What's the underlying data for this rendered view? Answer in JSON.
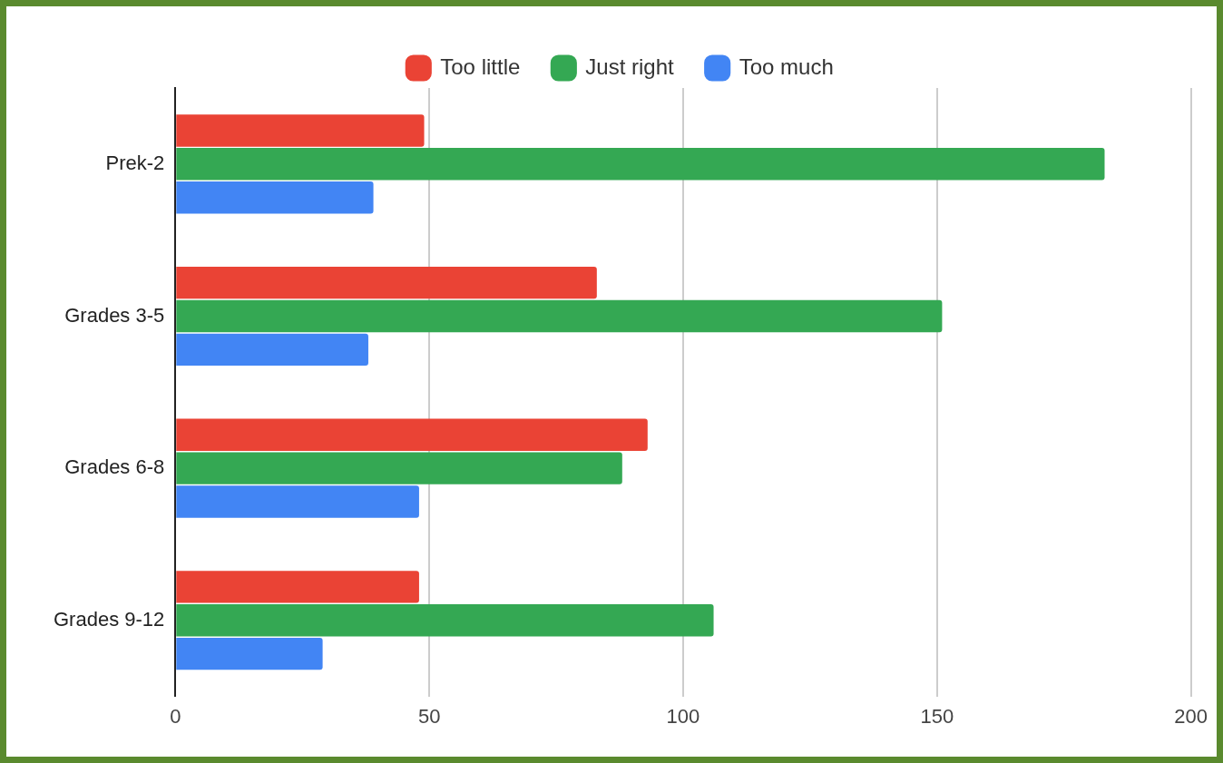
{
  "chart_data": {
    "type": "bar",
    "orientation": "horizontal",
    "categories": [
      "Prek-2",
      "Grades 3-5",
      "Grades 6-8",
      "Grades 9-12"
    ],
    "series": [
      {
        "name": "Too little",
        "color": "#ea4335",
        "values": [
          49,
          83,
          93,
          48
        ]
      },
      {
        "name": "Just right",
        "color": "#34a853",
        "values": [
          183,
          151,
          88,
          106
        ]
      },
      {
        "name": "Too much",
        "color": "#4285f4",
        "values": [
          39,
          38,
          48,
          29
        ]
      }
    ],
    "xlim": [
      0,
      200
    ],
    "xticks": [
      0,
      50,
      100,
      150,
      200
    ],
    "grid": "x",
    "legend": "top"
  }
}
